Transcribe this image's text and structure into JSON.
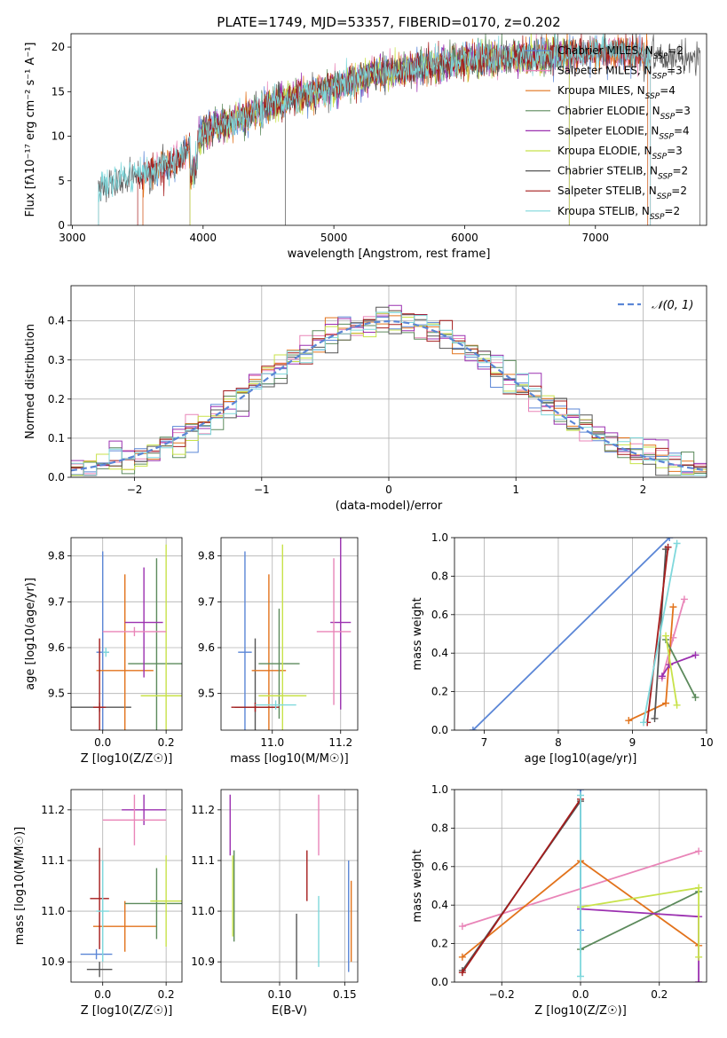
{
  "title": "PLATE=1749, MJD=53357, FIBERID=0170, z=0.202",
  "colors": {
    "c0": "#5b86d6",
    "c1": "#e2731c",
    "c2": "#5c8a5c",
    "c3": "#9b30b0",
    "c4": "#c8e24a",
    "c5": "#555555",
    "c6": "#a51c1c",
    "c7": "#7fd8dc",
    "c8": "#e985b8",
    "grid": "#b0b0b0"
  },
  "chart_data": [
    {
      "id": "spectrum",
      "type": "line",
      "xlabel": "wavelength [Angstrom, rest frame]",
      "ylabel": "Flux [fλ10⁻¹⁷ erg cm⁻² s⁻¹ A⁻¹]",
      "xlim": [
        2990,
        7850
      ],
      "ylim": [
        0,
        21.5
      ],
      "xticks": [
        3000,
        4000,
        5000,
        6000,
        7000
      ],
      "yticks": [
        0,
        5,
        10,
        15,
        20
      ],
      "grid": false,
      "legend_position": "top-right",
      "continuum": {
        "wavelength": [
          3200,
          3500,
          3800,
          4000,
          4300,
          4600,
          5000,
          5300,
          5600,
          6000,
          6400,
          6800,
          7200,
          7400
        ],
        "flux": [
          4.2,
          5.5,
          7.2,
          10.5,
          12.0,
          14.0,
          15.5,
          17.0,
          17.5,
          18.5,
          18.8,
          19.2,
          19.5,
          19.0
        ]
      },
      "data_drop_at": 4630,
      "series": [
        {
          "name": "Chabrier MILES, N_SSP=2",
          "start": 3540,
          "end": 7400,
          "color_key": "c0"
        },
        {
          "name": "Salpeter MILES, N_SSP=3",
          "start": 3540,
          "end": 7400,
          "color_key": "c8"
        },
        {
          "name": "Kroupa MILES, N_SSP=4",
          "start": 3540,
          "end": 7400,
          "color_key": "c1"
        },
        {
          "name": "Chabrier ELODIE, N_SSP=3",
          "start": 3900,
          "end": 6800,
          "color_key": "c2"
        },
        {
          "name": "Salpeter ELODIE, N_SSP=4",
          "start": 3900,
          "end": 6800,
          "color_key": "c3"
        },
        {
          "name": "Kroupa ELODIE, N_SSP=3",
          "start": 3900,
          "end": 6800,
          "color_key": "c4"
        },
        {
          "name": "Chabrier STELIB, N_SSP=2",
          "start": 3200,
          "end": 7800,
          "color_key": "c5"
        },
        {
          "name": "Salpeter STELIB, N_SSP=2",
          "start": 3500,
          "end": 7420,
          "color_key": "c6"
        },
        {
          "name": "Kroupa STELIB, N_SSP=2",
          "start": 3200,
          "end": 7420,
          "color_key": "c7"
        }
      ],
      "legend_labels": [
        "Chabrier MILES, N_SSP=2",
        "Salpeter MILES, N_SSP=3",
        "Kroupa MILES, N_SSP=4",
        "Chabrier ELODIE, N_SSP=3",
        "Salpeter ELODIE, N_SSP=4",
        "Kroupa ELODIE, N_SSP=3",
        "Chabrier STELIB, N_SSP=2",
        "Salpeter STELIB, N_SSP=2",
        "Kroupa STELIB, N_SSP=2"
      ]
    },
    {
      "id": "residuals",
      "type": "line",
      "xlabel": "(data-model)/error",
      "ylabel": "Normed distribution",
      "xlim": [
        -2.5,
        2.5
      ],
      "ylim": [
        0,
        0.49
      ],
      "xticks": [
        -2,
        -1,
        0,
        1,
        2
      ],
      "yticks": [
        0.0,
        0.1,
        0.2,
        0.3,
        0.4
      ],
      "grid": true,
      "legend_position": "top-right",
      "legend_label": "𝒩(0, 1)",
      "bin_width": 0.1,
      "gaussian": {
        "mean": 0,
        "sigma": 1,
        "style": "dashed",
        "color_key": "c0"
      }
    },
    {
      "id": "age_vs_Z",
      "type": "scatter",
      "xlabel": "Z [log10(Z/Z☉)]",
      "ylabel": "age [log10(age/yr)]",
      "xlim": [
        -0.1,
        0.25
      ],
      "ylim": [
        9.42,
        9.84
      ],
      "xticks": [
        0.0,
        0.2
      ],
      "yticks": [
        9.5,
        9.6,
        9.7,
        9.8
      ],
      "grid": true,
      "points": [
        {
          "x": -0.01,
          "xerr": 0.1,
          "y": 9.47,
          "yerr": 0.01,
          "color_key": "c5"
        },
        {
          "x": 0.0,
          "xerr": 0.02,
          "y": 9.59,
          "yerr": 0.22,
          "color_key": "c0"
        },
        {
          "x": 0.07,
          "xerr": 0.09,
          "y": 9.55,
          "yerr": 0.21,
          "color_key": "c1"
        },
        {
          "x": 0.17,
          "xerr": 0.09,
          "y": 9.565,
          "yerr": 0.23,
          "color_key": "c2"
        },
        {
          "x": 0.13,
          "xerr": 0.06,
          "y": 9.655,
          "yerr": 0.12,
          "color_key": "c3"
        },
        {
          "x": 0.2,
          "xerr": 0.08,
          "y": 9.495,
          "yerr": 0.33,
          "color_key": "c4"
        },
        {
          "x": -0.01,
          "xerr": 0.02,
          "y": 9.47,
          "yerr": 0.15,
          "color_key": "c6"
        },
        {
          "x": 0.01,
          "xerr": 0.01,
          "y": 9.59,
          "yerr": 0.01,
          "color_key": "c7"
        },
        {
          "x": 0.1,
          "xerr": 0.1,
          "y": 9.635,
          "yerr": 0.01,
          "color_key": "c8"
        }
      ]
    },
    {
      "id": "age_vs_mass",
      "type": "scatter",
      "xlabel": "mass [log10(M/M☉)]",
      "ylabel": "",
      "xlim": [
        10.85,
        11.25
      ],
      "ylim": [
        9.42,
        9.84
      ],
      "xticks": [
        11.0,
        11.2
      ],
      "yticks": [
        9.5,
        9.6,
        9.7,
        9.8
      ],
      "grid": true,
      "points": [
        {
          "x": 10.95,
          "xerr": 0.06,
          "y": 9.47,
          "yerr": 0.15,
          "color_key": "c5"
        },
        {
          "x": 10.92,
          "xerr": 0.02,
          "y": 9.59,
          "yerr": 0.22,
          "color_key": "c0"
        },
        {
          "x": 10.99,
          "xerr": 0.05,
          "y": 9.55,
          "yerr": 0.21,
          "color_key": "c1"
        },
        {
          "x": 11.02,
          "xerr": 0.06,
          "y": 9.565,
          "yerr": 0.12,
          "color_key": "c2"
        },
        {
          "x": 11.2,
          "xerr": 0.03,
          "y": 9.655,
          "yerr": 0.19,
          "color_key": "c3"
        },
        {
          "x": 11.03,
          "xerr": 0.07,
          "y": 9.495,
          "yerr": 0.33,
          "color_key": "c4"
        },
        {
          "x": 10.95,
          "xerr": 0.07,
          "y": 9.47,
          "yerr": 0.01,
          "color_key": "c6"
        },
        {
          "x": 11.01,
          "xerr": 0.06,
          "y": 9.475,
          "yerr": 0.01,
          "color_key": "c7"
        },
        {
          "x": 11.18,
          "xerr": 0.05,
          "y": 9.635,
          "yerr": 0.16,
          "color_key": "c8"
        }
      ]
    },
    {
      "id": "weight_vs_age",
      "type": "line",
      "xlabel": "age [log10(age/yr)]",
      "ylabel": "mass weight",
      "xlim": [
        6.6,
        10.0
      ],
      "ylim": [
        0,
        1.0
      ],
      "xticks": [
        7,
        8,
        9,
        10
      ],
      "yticks": [
        0.0,
        0.2,
        0.4,
        0.6,
        0.8,
        1.0
      ],
      "grid": true,
      "series": [
        {
          "color_key": "c0",
          "points": [
            [
              6.85,
              0.0
            ],
            [
              9.5,
              1.0
            ]
          ]
        },
        {
          "color_key": "c8",
          "points": [
            [
              9.4,
              0.27
            ],
            [
              9.55,
              0.48
            ],
            [
              9.7,
              0.68
            ]
          ]
        },
        {
          "color_key": "c1",
          "points": [
            [
              8.95,
              0.05
            ],
            [
              9.45,
              0.14
            ],
            [
              9.55,
              0.64
            ]
          ]
        },
        {
          "color_key": "c2",
          "points": [
            [
              9.45,
              0.47
            ],
            [
              9.85,
              0.17
            ]
          ]
        },
        {
          "color_key": "c3",
          "points": [
            [
              9.4,
              0.28
            ],
            [
              9.5,
              0.34
            ],
            [
              9.85,
              0.39
            ]
          ]
        },
        {
          "color_key": "c4",
          "points": [
            [
              9.45,
              0.49
            ],
            [
              9.6,
              0.13
            ]
          ]
        },
        {
          "color_key": "c5",
          "points": [
            [
              9.3,
              0.06
            ],
            [
              9.45,
              0.94
            ]
          ]
        },
        {
          "color_key": "c6",
          "points": [
            [
              9.2,
              0.04
            ],
            [
              9.48,
              0.95
            ]
          ]
        },
        {
          "color_key": "c7",
          "points": [
            [
              9.15,
              0.04
            ],
            [
              9.6,
              0.97
            ]
          ]
        }
      ]
    },
    {
      "id": "mass_vs_Z",
      "type": "scatter",
      "xlabel": "Z [log10(Z/Z☉)]",
      "ylabel": "mass [log10(M/M☉)]",
      "xlim": [
        -0.1,
        0.25
      ],
      "ylim": [
        10.86,
        11.24
      ],
      "xticks": [
        0.0,
        0.2
      ],
      "yticks": [
        10.9,
        11.0,
        11.1,
        11.2
      ],
      "grid": true,
      "points": [
        {
          "x": -0.02,
          "xerr": 0.05,
          "y": 10.915,
          "yerr": 0.01,
          "color_key": "c0"
        },
        {
          "x": -0.01,
          "xerr": 0.04,
          "y": 10.885,
          "yerr": 0.015,
          "color_key": "c5"
        },
        {
          "x": 0.07,
          "xerr": 0.1,
          "y": 10.97,
          "yerr": 0.05,
          "color_key": "c1"
        },
        {
          "x": 0.17,
          "xerr": 0.1,
          "y": 11.015,
          "yerr": 0.07,
          "color_key": "c2"
        },
        {
          "x": 0.13,
          "xerr": 0.07,
          "y": 11.2,
          "yerr": 0.03,
          "color_key": "c3"
        },
        {
          "x": 0.2,
          "xerr": 0.05,
          "y": 11.02,
          "yerr": 0.09,
          "color_key": "c4"
        },
        {
          "x": -0.01,
          "xerr": 0.03,
          "y": 11.025,
          "yerr": 0.1,
          "color_key": "c6"
        },
        {
          "x": 0.0,
          "xerr": 0.02,
          "y": 11.0,
          "yerr": 0.1,
          "color_key": "c7"
        },
        {
          "x": 0.1,
          "xerr": 0.1,
          "y": 11.18,
          "yerr": 0.05,
          "color_key": "c8"
        }
      ]
    },
    {
      "id": "mass_vs_ebv",
      "type": "scatter",
      "xlabel": "E(B-V)",
      "ylabel": "",
      "xlim": [
        0.055,
        0.16
      ],
      "ylim": [
        10.86,
        11.24
      ],
      "xticks": [
        0.1,
        0.15
      ],
      "yticks": [
        10.9,
        11.0,
        11.1,
        11.2
      ],
      "grid": true,
      "points": [
        {
          "x": 0.153,
          "xerr": 0,
          "y": 10.99,
          "yerr": 0.11,
          "color_key": "c0"
        },
        {
          "x": 0.155,
          "xerr": 0,
          "y": 10.98,
          "yerr": 0.08,
          "color_key": "c1"
        },
        {
          "x": 0.065,
          "xerr": 0,
          "y": 11.03,
          "yerr": 0.09,
          "color_key": "c2"
        },
        {
          "x": 0.062,
          "xerr": 0,
          "y": 11.17,
          "yerr": 0.06,
          "color_key": "c3"
        },
        {
          "x": 0.064,
          "xerr": 0,
          "y": 11.03,
          "yerr": 0.08,
          "color_key": "c4"
        },
        {
          "x": 0.113,
          "xerr": 0,
          "y": 10.93,
          "yerr": 0.065,
          "color_key": "c5"
        },
        {
          "x": 0.121,
          "xerr": 0,
          "y": 11.07,
          "yerr": 0.05,
          "color_key": "c6"
        },
        {
          "x": 0.13,
          "xerr": 0,
          "y": 10.96,
          "yerr": 0.07,
          "color_key": "c7"
        },
        {
          "x": 0.13,
          "xerr": 0,
          "y": 11.17,
          "yerr": 0.06,
          "color_key": "c8"
        }
      ]
    },
    {
      "id": "weight_vs_Z",
      "type": "line",
      "xlabel": "Z [log10(Z/Z☉)]",
      "ylabel": "mass weight",
      "xlim": [
        -0.32,
        0.32
      ],
      "ylim": [
        0,
        1.0
      ],
      "xticks": [
        -0.2,
        0.0,
        0.2
      ],
      "yticks": [
        0.0,
        0.2,
        0.4,
        0.6,
        0.8,
        1.0
      ],
      "grid": true,
      "series": [
        {
          "color_key": "c0",
          "points": [
            [
              0.0,
              1.0
            ],
            [
              0.0,
              0.27
            ]
          ]
        },
        {
          "color_key": "c8",
          "points": [
            [
              -0.3,
              0.29
            ],
            [
              0.3,
              0.68
            ]
          ]
        },
        {
          "color_key": "c1",
          "points": [
            [
              -0.3,
              0.13
            ],
            [
              0.0,
              0.63
            ],
            [
              0.3,
              0.19
            ]
          ]
        },
        {
          "color_key": "c2",
          "points": [
            [
              0.0,
              0.17
            ],
            [
              0.3,
              0.47
            ]
          ]
        },
        {
          "color_key": "c3",
          "points": [
            [
              0.0,
              0.38
            ],
            [
              0.3,
              0.34
            ],
            [
              0.3,
              0.0
            ]
          ]
        },
        {
          "color_key": "c4",
          "points": [
            [
              0.0,
              0.39
            ],
            [
              0.3,
              0.49
            ],
            [
              0.3,
              0.13
            ]
          ]
        },
        {
          "color_key": "c5",
          "points": [
            [
              -0.3,
              0.06
            ],
            [
              0.0,
              0.94
            ]
          ]
        },
        {
          "color_key": "c6",
          "points": [
            [
              -0.3,
              0.05
            ],
            [
              0.0,
              0.95
            ]
          ]
        },
        {
          "color_key": "c7",
          "points": [
            [
              0.0,
              0.97
            ],
            [
              0.0,
              0.03
            ]
          ]
        }
      ]
    }
  ]
}
